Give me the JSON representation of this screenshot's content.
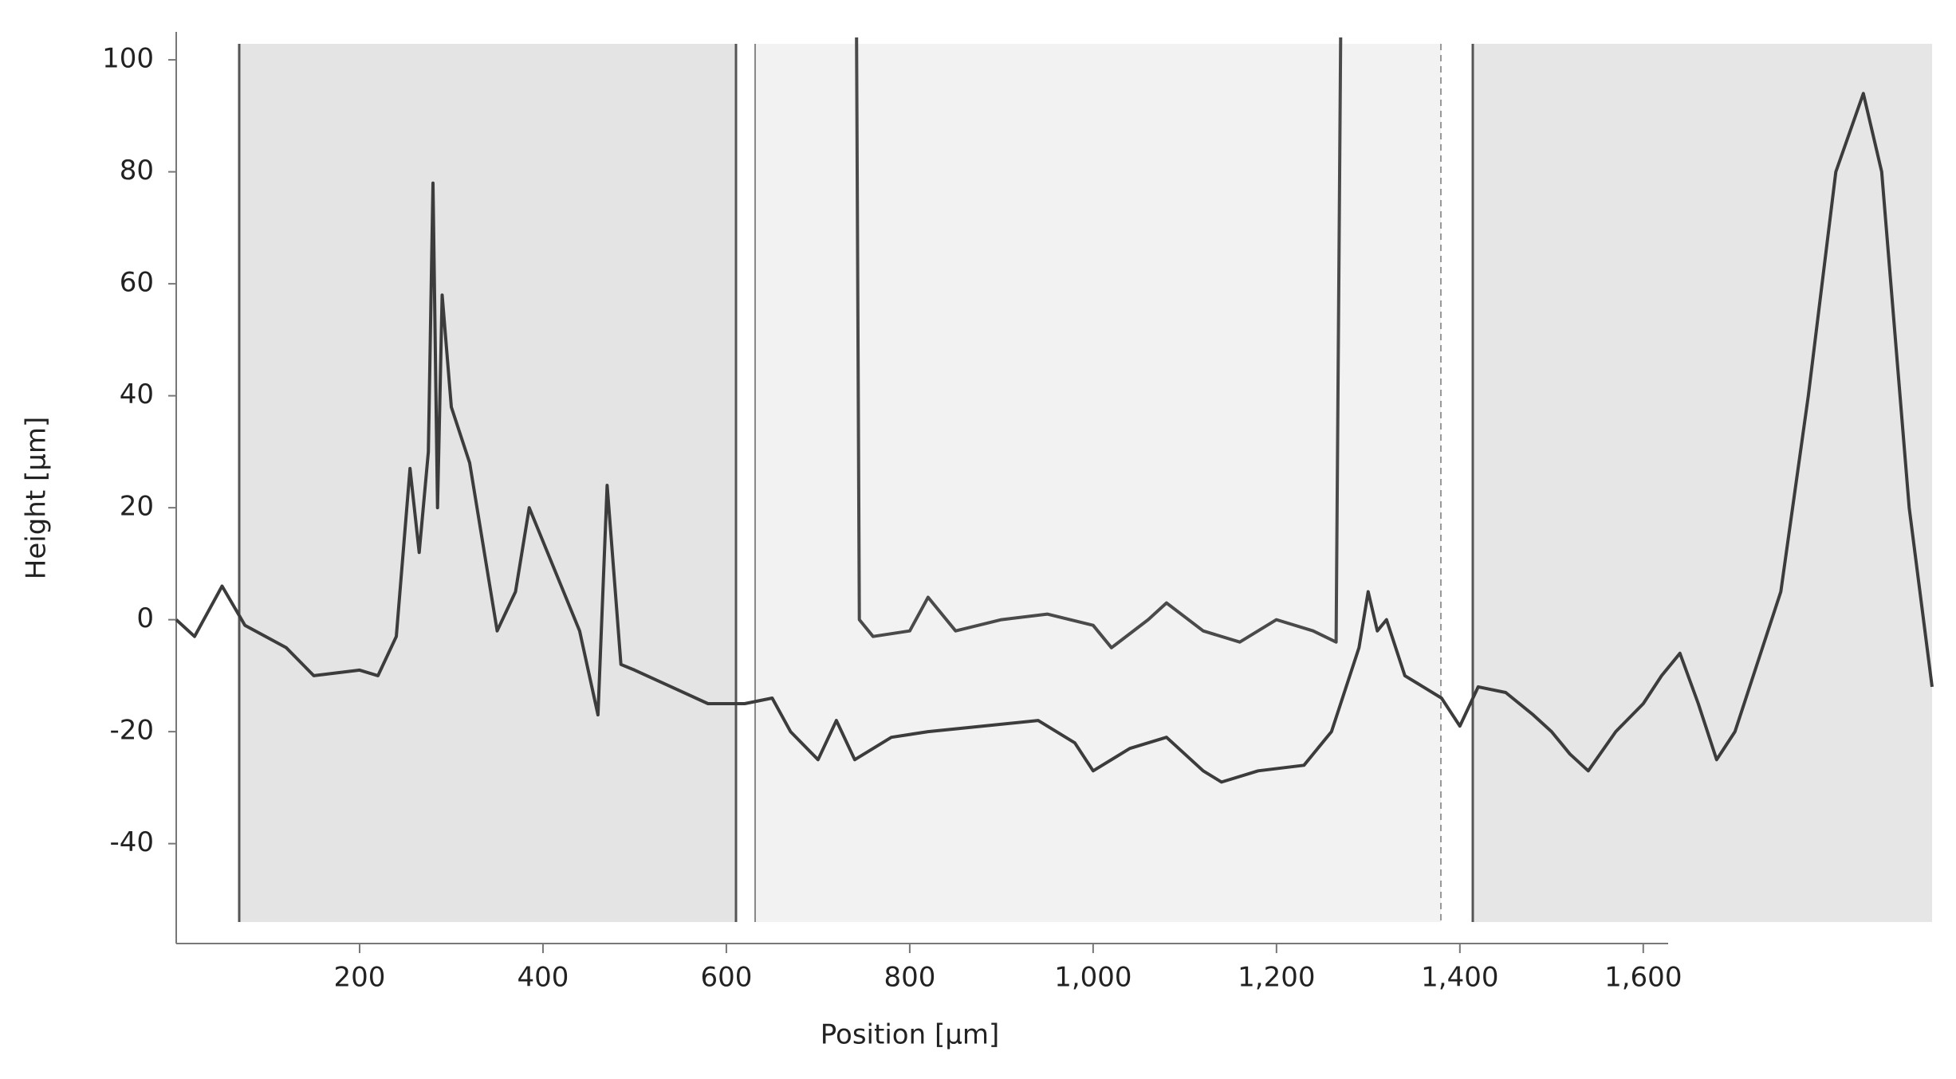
{
  "chart_data": {
    "type": "line",
    "x_label": "Position [µm]",
    "y_label": "Height [µm]",
    "xlim": [
      0,
      1915
    ],
    "ylim": [
      -54,
      104
    ],
    "xticks": [
      200,
      400,
      600,
      800,
      {
        "value": 1000,
        "label": "1,000"
      },
      {
        "value": 1200,
        "label": "1,200"
      },
      {
        "value": 1400,
        "label": "1,400"
      },
      {
        "value": 1600,
        "label": "1,600"
      }
    ],
    "yticks": [
      -40,
      -20,
      0,
      20,
      40,
      60,
      80,
      100
    ],
    "grid": false,
    "series": [
      {
        "color": "#3c3c3c",
        "x": [
          0,
          20,
          50,
          75,
          120,
          150,
          200,
          220,
          240,
          255,
          265,
          275,
          280,
          285,
          290,
          300,
          320,
          350,
          370,
          385,
          410,
          440,
          460,
          470,
          485,
          500,
          540,
          580,
          620,
          650,
          670,
          700,
          720,
          740,
          780,
          820,
          880,
          940,
          980,
          1000,
          1040,
          1080,
          1120,
          1140,
          1180,
          1230,
          1260,
          1290,
          1300,
          1310,
          1320,
          1340,
          1360,
          1380,
          1400,
          1420,
          1450,
          1480,
          1500,
          1520,
          1540,
          1570,
          1600,
          1620,
          1640,
          1660,
          1680,
          1700,
          1720,
          1750,
          1780,
          1810,
          1840,
          1860,
          1890,
          1915
        ],
        "values": [
          0,
          -3,
          6,
          -1,
          -5,
          -10,
          -9,
          -10,
          -3,
          27,
          12,
          30,
          78,
          20,
          58,
          38,
          28,
          -2,
          5,
          20,
          10,
          -2,
          -17,
          24,
          -8,
          -9,
          -12,
          -15,
          -15,
          -14,
          -20,
          -25,
          -18,
          -25,
          -21,
          -20,
          -19,
          -18,
          -22,
          -27,
          -23,
          -21,
          -27,
          -29,
          -27,
          -26,
          -20,
          -5,
          5,
          -2,
          0,
          -10,
          -12,
          -14,
          -19,
          -12,
          -13,
          -17,
          -20,
          -24,
          -27,
          -20,
          -15,
          -10,
          -6,
          -15,
          -25,
          -20,
          -10,
          5,
          40,
          80,
          94,
          80,
          20,
          -12
        ]
      },
      {
        "color": "#4a4a4a",
        "x": [
          742,
          745,
          760,
          800,
          820,
          850,
          900,
          950,
          1000,
          1020,
          1060,
          1080,
          1120,
          1160,
          1200,
          1240,
          1265,
          1270
        ],
        "values": [
          104,
          0,
          -3,
          -2,
          4,
          -2,
          0,
          1,
          -1,
          -5,
          0,
          3,
          -2,
          -4,
          0,
          -2,
          -4,
          104
        ]
      }
    ]
  }
}
